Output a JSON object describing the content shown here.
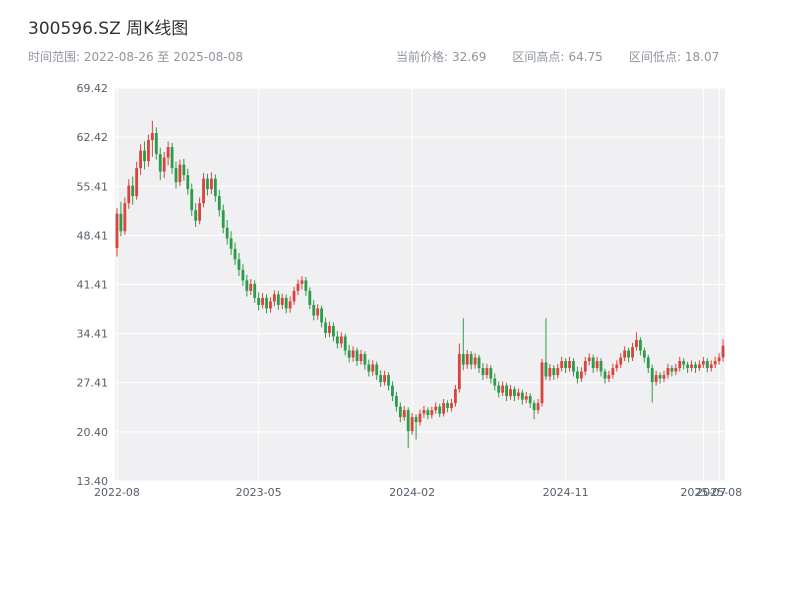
{
  "header": {
    "title": "300596.SZ 周K线图",
    "range": "时间范围: 2022-08-26 至 2025-08-08",
    "stats": [
      {
        "label": "当前价格:",
        "value": "32.69"
      },
      {
        "label": "区间高点:",
        "value": "64.75"
      },
      {
        "label": "区间低点:",
        "value": "18.07"
      }
    ]
  },
  "chart_data": {
    "type": "candlestick",
    "title": "300596.SZ 周K线图",
    "interval": "weekly",
    "date_range": {
      "start": "2022-08-26",
      "end": "2025-08-08"
    },
    "current_price": 32.69,
    "range_high": 64.75,
    "range_low": 18.07,
    "ylim": [
      13.4,
      69.42
    ],
    "grid": true,
    "colors": {
      "up": "#d9453c",
      "down": "#2e9b4b",
      "panel": "#f0f0f2",
      "grid": "#ffffff",
      "tick": "#55606b"
    },
    "y_ticks": [
      {
        "value": 69.42,
        "label": "69.42"
      },
      {
        "value": 62.42,
        "label": "62.42"
      },
      {
        "value": 55.41,
        "label": "55.41"
      },
      {
        "value": 48.41,
        "label": "48.41"
      },
      {
        "value": 41.41,
        "label": "41.41"
      },
      {
        "value": 34.41,
        "label": "34.41"
      },
      {
        "value": 27.41,
        "label": "27.41"
      },
      {
        "value": 20.4,
        "label": "20.40"
      },
      {
        "value": 13.4,
        "label": "13.40"
      }
    ],
    "x_ticks": [
      {
        "index": 0,
        "label": "2022-08"
      },
      {
        "index": 36,
        "label": "2023-05"
      },
      {
        "index": 75,
        "label": "2024-02"
      },
      {
        "index": 114,
        "label": "2024-11"
      },
      {
        "index": 149,
        "label": "2025-07"
      },
      {
        "index": 153,
        "label": "2025-08"
      }
    ],
    "candles_format": [
      "open",
      "high",
      "low",
      "close"
    ],
    "candles": [
      [
        46.6,
        52.3,
        45.4,
        51.5
      ],
      [
        51.5,
        53.2,
        48.3,
        49.0
      ],
      [
        49.0,
        53.8,
        48.5,
        53.0
      ],
      [
        53.0,
        56.4,
        52.2,
        55.5
      ],
      [
        55.5,
        56.8,
        52.8,
        54.0
      ],
      [
        54.0,
        58.9,
        53.5,
        58.0
      ],
      [
        58.0,
        61.4,
        57.0,
        60.5
      ],
      [
        60.5,
        61.8,
        57.8,
        59.0
      ],
      [
        59.0,
        62.8,
        58.2,
        62.0
      ],
      [
        62.0,
        64.75,
        59.6,
        63.0
      ],
      [
        63.0,
        63.8,
        59.2,
        60.0
      ],
      [
        60.0,
        60.9,
        56.3,
        57.5
      ],
      [
        57.5,
        60.3,
        56.6,
        59.5
      ],
      [
        59.5,
        61.8,
        58.4,
        61.0
      ],
      [
        61.0,
        61.6,
        57.2,
        58.0
      ],
      [
        58.0,
        58.9,
        55.1,
        56.0
      ],
      [
        56.0,
        59.2,
        55.4,
        58.5
      ],
      [
        58.5,
        59.3,
        56.2,
        57.0
      ],
      [
        57.0,
        57.9,
        54.2,
        55.0
      ],
      [
        55.0,
        55.8,
        51.2,
        52.0
      ],
      [
        52.0,
        53.0,
        49.6,
        50.5
      ],
      [
        50.5,
        53.8,
        50.0,
        53.0
      ],
      [
        53.0,
        57.3,
        52.4,
        56.5
      ],
      [
        56.5,
        57.2,
        54.1,
        55.0
      ],
      [
        55.0,
        57.4,
        54.3,
        56.5
      ],
      [
        56.5,
        57.1,
        53.2,
        54.0
      ],
      [
        54.0,
        54.9,
        51.1,
        52.0
      ],
      [
        52.0,
        52.8,
        48.7,
        49.5
      ],
      [
        49.5,
        50.6,
        47.1,
        48.0
      ],
      [
        48.0,
        49.0,
        45.6,
        46.5
      ],
      [
        46.5,
        47.4,
        44.2,
        45.0
      ],
      [
        45.0,
        45.9,
        42.6,
        43.5
      ],
      [
        43.5,
        44.3,
        41.2,
        42.0
      ],
      [
        42.0,
        42.8,
        39.7,
        40.5
      ],
      [
        40.5,
        42.2,
        39.9,
        41.5
      ],
      [
        41.5,
        42.0,
        38.8,
        39.5
      ],
      [
        39.5,
        40.3,
        37.7,
        38.5
      ],
      [
        38.5,
        40.2,
        38.0,
        39.5
      ],
      [
        39.5,
        40.0,
        37.3,
        38.0
      ],
      [
        38.0,
        39.6,
        37.4,
        39.0
      ],
      [
        39.0,
        40.6,
        38.3,
        40.0
      ],
      [
        40.0,
        40.5,
        37.8,
        38.5
      ],
      [
        38.5,
        40.1,
        37.9,
        39.5
      ],
      [
        39.5,
        40.0,
        37.3,
        38.0
      ],
      [
        38.0,
        39.7,
        37.4,
        39.0
      ],
      [
        39.0,
        41.1,
        38.5,
        40.5
      ],
      [
        40.5,
        42.1,
        39.9,
        41.5
      ],
      [
        41.5,
        42.6,
        40.7,
        42.0
      ],
      [
        42.0,
        42.5,
        39.8,
        40.5
      ],
      [
        40.5,
        41.0,
        37.9,
        38.5
      ],
      [
        38.5,
        39.2,
        36.3,
        37.0
      ],
      [
        37.0,
        38.6,
        36.4,
        38.0
      ],
      [
        38.0,
        38.4,
        35.3,
        36.0
      ],
      [
        36.0,
        36.7,
        33.8,
        34.5
      ],
      [
        34.5,
        36.1,
        33.9,
        35.5
      ],
      [
        35.5,
        36.0,
        33.3,
        34.0
      ],
      [
        34.0,
        34.8,
        32.3,
        33.0
      ],
      [
        33.0,
        34.6,
        32.4,
        34.0
      ],
      [
        34.0,
        34.4,
        31.3,
        32.0
      ],
      [
        32.0,
        32.8,
        30.3,
        31.0
      ],
      [
        31.0,
        32.6,
        30.4,
        32.0
      ],
      [
        32.0,
        32.4,
        29.8,
        30.5
      ],
      [
        30.5,
        32.1,
        30.0,
        31.5
      ],
      [
        31.5,
        31.9,
        29.3,
        30.0
      ],
      [
        30.0,
        30.7,
        28.3,
        29.0
      ],
      [
        29.0,
        30.6,
        28.4,
        30.0
      ],
      [
        30.0,
        30.4,
        27.8,
        28.5
      ],
      [
        28.5,
        29.2,
        26.8,
        27.5
      ],
      [
        27.5,
        29.1,
        27.0,
        28.5
      ],
      [
        28.5,
        28.9,
        26.3,
        27.0
      ],
      [
        27.0,
        27.6,
        24.8,
        25.5
      ],
      [
        25.5,
        26.1,
        23.3,
        24.0
      ],
      [
        24.0,
        24.6,
        21.8,
        22.5
      ],
      [
        22.5,
        24.1,
        22.0,
        23.5
      ],
      [
        23.5,
        23.9,
        18.07,
        20.5
      ],
      [
        20.5,
        23.1,
        20.0,
        22.5
      ],
      [
        22.5,
        22.9,
        19.3,
        21.8
      ],
      [
        21.8,
        23.6,
        21.3,
        23.0
      ],
      [
        23.0,
        24.1,
        22.4,
        23.5
      ],
      [
        23.5,
        23.9,
        22.2,
        22.8
      ],
      [
        22.8,
        24.0,
        22.3,
        23.5
      ],
      [
        23.5,
        24.6,
        23.0,
        24.0
      ],
      [
        24.0,
        24.4,
        22.5,
        23.0
      ],
      [
        23.0,
        25.1,
        22.6,
        24.5
      ],
      [
        24.5,
        24.9,
        23.2,
        23.8
      ],
      [
        23.8,
        25.1,
        23.3,
        24.5
      ],
      [
        24.5,
        27.1,
        24.0,
        26.5
      ],
      [
        26.5,
        33.0,
        26.0,
        31.5
      ],
      [
        31.5,
        36.6,
        29.2,
        30.0
      ],
      [
        30.0,
        32.1,
        29.4,
        31.5
      ],
      [
        31.5,
        31.9,
        29.3,
        30.0
      ],
      [
        30.0,
        31.6,
        29.4,
        31.0
      ],
      [
        31.0,
        31.4,
        28.8,
        29.5
      ],
      [
        29.5,
        30.2,
        27.8,
        28.5
      ],
      [
        28.5,
        30.1,
        28.0,
        29.5
      ],
      [
        29.5,
        29.9,
        27.3,
        28.0
      ],
      [
        28.0,
        28.7,
        26.3,
        27.0
      ],
      [
        27.0,
        27.6,
        25.3,
        26.0
      ],
      [
        26.0,
        27.6,
        25.5,
        27.0
      ],
      [
        27.0,
        27.4,
        24.8,
        25.5
      ],
      [
        25.5,
        27.1,
        25.0,
        26.5
      ],
      [
        26.5,
        26.9,
        24.8,
        25.5
      ],
      [
        25.5,
        26.6,
        25.0,
        26.0
      ],
      [
        26.0,
        26.4,
        24.3,
        25.0
      ],
      [
        25.0,
        26.1,
        24.5,
        25.5
      ],
      [
        25.5,
        25.9,
        23.8,
        24.5
      ],
      [
        24.5,
        24.9,
        22.2,
        23.5
      ],
      [
        23.5,
        25.1,
        23.0,
        24.5
      ],
      [
        24.5,
        30.8,
        24.0,
        30.3
      ],
      [
        30.3,
        36.6,
        27.8,
        28.3
      ],
      [
        28.3,
        30.1,
        27.7,
        29.5
      ],
      [
        29.5,
        29.9,
        27.8,
        28.5
      ],
      [
        28.5,
        30.1,
        28.0,
        29.5
      ],
      [
        29.5,
        31.1,
        29.0,
        30.5
      ],
      [
        30.5,
        30.9,
        28.8,
        29.5
      ],
      [
        29.5,
        31.1,
        29.0,
        30.5
      ],
      [
        30.5,
        30.9,
        28.3,
        29.0
      ],
      [
        29.0,
        29.7,
        27.3,
        28.0
      ],
      [
        28.0,
        29.6,
        27.5,
        29.0
      ],
      [
        29.0,
        31.1,
        28.5,
        30.5
      ],
      [
        30.5,
        31.6,
        29.9,
        31.0
      ],
      [
        31.0,
        31.4,
        28.8,
        29.5
      ],
      [
        29.5,
        31.1,
        29.0,
        30.5
      ],
      [
        30.5,
        30.9,
        28.3,
        29.0
      ],
      [
        29.0,
        29.4,
        27.3,
        28.0
      ],
      [
        28.0,
        29.1,
        27.5,
        28.5
      ],
      [
        28.5,
        30.1,
        28.0,
        29.5
      ],
      [
        29.5,
        30.6,
        29.0,
        30.0
      ],
      [
        30.0,
        31.6,
        29.5,
        31.0
      ],
      [
        31.0,
        32.6,
        30.5,
        32.0
      ],
      [
        32.0,
        32.4,
        30.3,
        31.0
      ],
      [
        31.0,
        33.1,
        30.5,
        32.5
      ],
      [
        32.5,
        34.6,
        32.0,
        33.5
      ],
      [
        33.5,
        33.9,
        31.3,
        32.0
      ],
      [
        32.0,
        32.4,
        30.3,
        31.0
      ],
      [
        31.0,
        31.4,
        28.8,
        29.5
      ],
      [
        29.5,
        30.0,
        24.6,
        27.5
      ],
      [
        27.5,
        29.1,
        27.0,
        28.5
      ],
      [
        28.5,
        28.9,
        27.3,
        28.0
      ],
      [
        28.0,
        29.1,
        27.5,
        28.5
      ],
      [
        28.5,
        30.1,
        28.0,
        29.5
      ],
      [
        29.5,
        29.9,
        28.3,
        29.0
      ],
      [
        29.0,
        30.1,
        28.5,
        29.5
      ],
      [
        29.5,
        31.1,
        29.0,
        30.5
      ],
      [
        30.5,
        30.9,
        29.3,
        30.0
      ],
      [
        30.0,
        30.4,
        28.8,
        29.5
      ],
      [
        29.5,
        30.6,
        29.0,
        30.0
      ],
      [
        30.0,
        30.4,
        28.8,
        29.5
      ],
      [
        29.5,
        30.6,
        29.1,
        30.0
      ],
      [
        30.0,
        31.1,
        29.5,
        30.5
      ],
      [
        30.5,
        30.9,
        28.9,
        29.5
      ],
      [
        29.5,
        30.6,
        29.0,
        30.0
      ],
      [
        30.0,
        31.1,
        29.5,
        30.5
      ],
      [
        30.5,
        31.6,
        30.0,
        31.0
      ],
      [
        31.0,
        33.6,
        30.4,
        32.69
      ]
    ]
  }
}
